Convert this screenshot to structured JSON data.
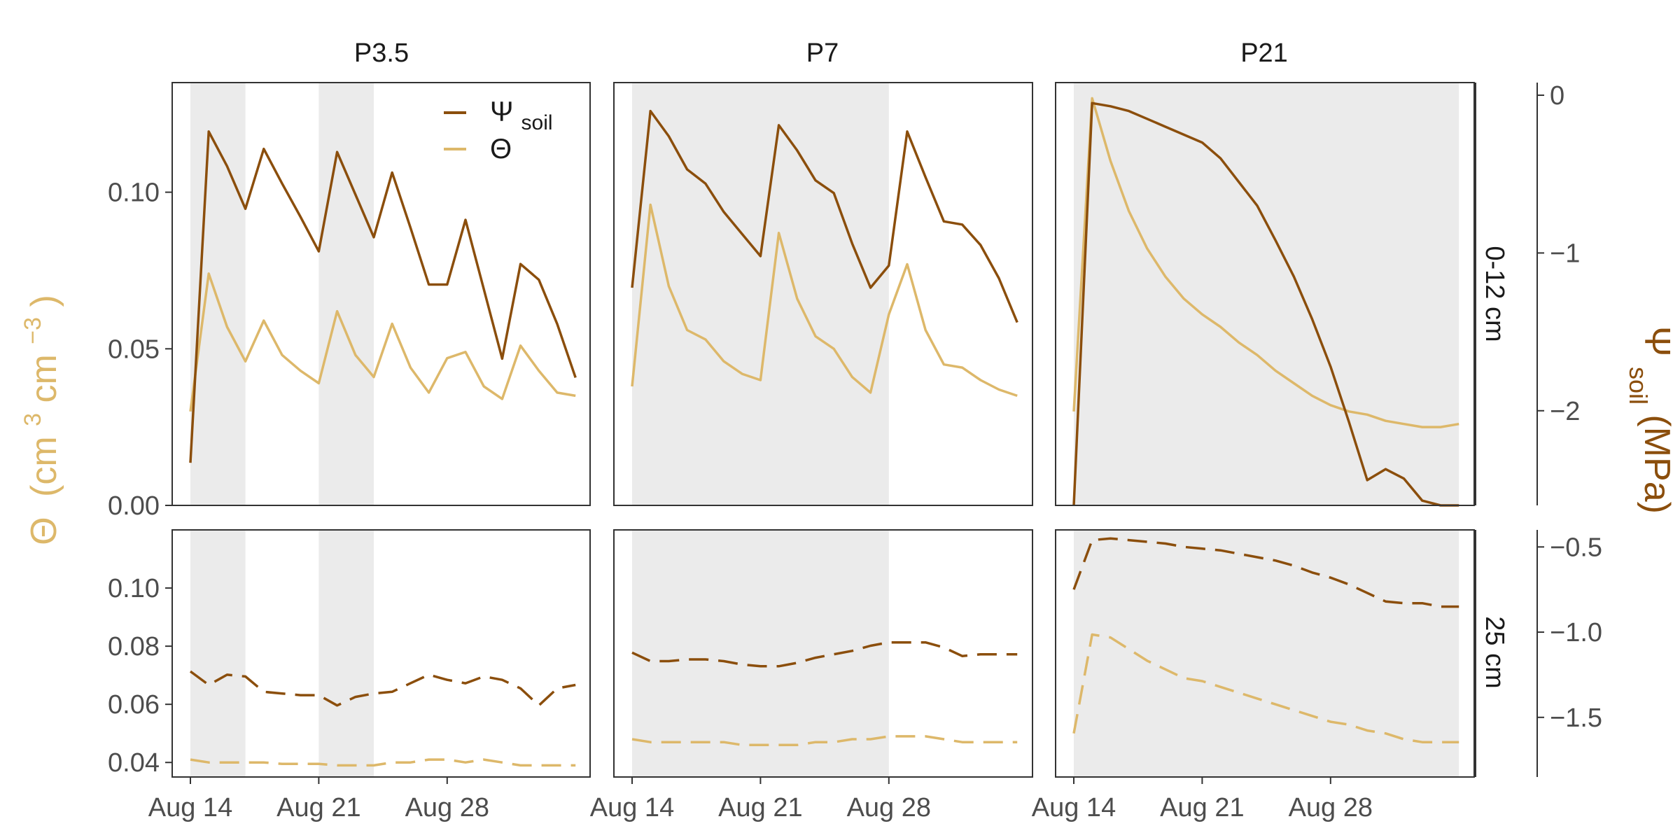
{
  "chart_data": {
    "type": "line",
    "facets": {
      "columns": [
        "P3.5",
        "P7",
        "P21"
      ],
      "rows": [
        "0-12 cm",
        "25 cm"
      ]
    },
    "x_axis": {
      "ticks": [
        "Aug 14",
        "Aug 21",
        "Aug 28"
      ],
      "range": [
        "Aug 14",
        "Sep 4"
      ]
    },
    "left_axis": {
      "title_symbol": "Θ",
      "title_units": "(cm",
      "title_sup1": "3",
      "title_mid": " cm",
      "title_sup2": " −3",
      "title_end": ")",
      "ylim_top": [
        0,
        0.135
      ],
      "ticks_top": [
        "0.00",
        "0.05",
        "0.10"
      ],
      "ylim_bottom": [
        0.035,
        0.12
      ],
      "ticks_bottom": [
        "0.04",
        "0.06",
        "0.08",
        "0.10"
      ]
    },
    "right_axis": {
      "title_symbol": "Ψ",
      "title_sub": "soil",
      "title_units": " (MPa)",
      "ylim_top": [
        -2.6,
        0.08
      ],
      "ticks_top": [
        "0",
        "−1",
        "−2"
      ],
      "ylim_bottom": [
        -1.85,
        -0.4
      ],
      "ticks_bottom": [
        "−0.5",
        "−1.0",
        "−1.5"
      ]
    },
    "legend": {
      "psi_symbol": "Ψ",
      "psi_sub": "soil",
      "theta_label": "Θ"
    },
    "colors": {
      "psi": "#8B4E0C",
      "theta": "#DDB86A",
      "shade": "#EBEBEB",
      "frame": "#333333"
    },
    "shaded_periods": {
      "P3.5": [
        [
          0,
          3
        ],
        [
          7,
          10
        ]
      ],
      "P7": [
        [
          0,
          14
        ]
      ],
      "P21": [
        [
          0,
          21
        ]
      ]
    },
    "series": {
      "P3.5": {
        "days": [
          0,
          1,
          2,
          3,
          4,
          5,
          6,
          7,
          8,
          9,
          10,
          11,
          12,
          13,
          14,
          15,
          16,
          17,
          18,
          19,
          20,
          21
        ],
        "theta_0_12": [
          0.03,
          0.074,
          0.057,
          0.046,
          0.059,
          0.048,
          0.043,
          0.039,
          0.062,
          0.048,
          0.041,
          0.058,
          0.044,
          0.036,
          0.047,
          0.049,
          0.038,
          0.034,
          0.051,
          0.043,
          0.036,
          0.035
        ],
        "psi_0_12": [
          -2.33,
          -0.23,
          -0.45,
          -0.72,
          -0.34,
          -0.56,
          -0.77,
          -0.99,
          -0.36,
          -0.63,
          -0.9,
          -0.49,
          -0.84,
          -1.2,
          -1.2,
          -0.79,
          -1.23,
          -1.67,
          -1.07,
          -1.17,
          -1.45,
          -1.79
        ],
        "theta_25": [
          0.041,
          0.04,
          0.04,
          0.04,
          0.04,
          0.0395,
          0.0395,
          0.0395,
          0.039,
          0.039,
          0.039,
          0.04,
          0.04,
          0.041,
          0.041,
          0.04,
          0.041,
          0.04,
          0.039,
          0.039,
          0.039,
          0.039
        ],
        "psi_25": [
          -1.23,
          -1.31,
          -1.25,
          -1.26,
          -1.35,
          -1.36,
          -1.37,
          -1.37,
          -1.43,
          -1.38,
          -1.36,
          -1.35,
          -1.3,
          -1.25,
          -1.28,
          -1.3,
          -1.26,
          -1.28,
          -1.33,
          -1.43,
          -1.33,
          -1.31
        ]
      },
      "P7": {
        "days": [
          0,
          1,
          2,
          3,
          4,
          5,
          6,
          7,
          8,
          9,
          10,
          11,
          12,
          13,
          14,
          15,
          16,
          17,
          18,
          19,
          20,
          21
        ],
        "theta_0_12": [
          0.038,
          0.096,
          0.07,
          0.056,
          0.053,
          0.046,
          0.042,
          0.04,
          0.087,
          0.066,
          0.054,
          0.05,
          0.041,
          0.036,
          0.061,
          0.077,
          0.056,
          0.045,
          0.044,
          0.04,
          0.037,
          0.035
        ],
        "psi_0_12": [
          -1.22,
          -0.1,
          -0.26,
          -0.47,
          -0.56,
          -0.74,
          -0.88,
          -1.02,
          -0.19,
          -0.35,
          -0.54,
          -0.62,
          -0.94,
          -1.22,
          -1.08,
          -0.23,
          -0.52,
          -0.8,
          -0.82,
          -0.95,
          -1.16,
          -1.44
        ],
        "theta_25": [
          0.048,
          0.047,
          0.047,
          0.047,
          0.047,
          0.047,
          0.046,
          0.046,
          0.046,
          0.046,
          0.047,
          0.047,
          0.048,
          0.048,
          0.049,
          0.049,
          0.049,
          0.048,
          0.047,
          0.047,
          0.047,
          0.047
        ],
        "psi_25": [
          -1.12,
          -1.17,
          -1.17,
          -1.16,
          -1.16,
          -1.17,
          -1.19,
          -1.2,
          -1.2,
          -1.18,
          -1.15,
          -1.13,
          -1.11,
          -1.08,
          -1.06,
          -1.06,
          -1.06,
          -1.09,
          -1.14,
          -1.13,
          -1.13,
          -1.13
        ]
      },
      "P21": {
        "days": [
          0,
          1,
          2,
          3,
          4,
          5,
          6,
          7,
          8,
          9,
          10,
          11,
          12,
          13,
          14,
          15,
          16,
          17,
          18,
          19,
          20,
          21
        ],
        "theta_0_12": [
          0.03,
          0.13,
          0.11,
          0.094,
          0.082,
          0.073,
          0.066,
          0.061,
          0.057,
          0.052,
          0.048,
          0.043,
          0.039,
          0.035,
          0.032,
          0.03,
          0.029,
          0.027,
          0.026,
          0.025,
          0.025,
          0.026
        ],
        "psi_0_12": [
          -2.6,
          -0.05,
          -0.07,
          -0.1,
          -0.15,
          -0.2,
          -0.25,
          -0.3,
          -0.4,
          -0.55,
          -0.7,
          -0.92,
          -1.15,
          -1.42,
          -1.72,
          -2.07,
          -2.44,
          -2.37,
          -2.43,
          -2.57,
          -2.6,
          -2.6
        ],
        "theta_25": [
          0.05,
          0.084,
          0.083,
          0.079,
          0.075,
          0.072,
          0.069,
          0.068,
          0.066,
          0.064,
          0.062,
          0.06,
          0.058,
          0.056,
          0.054,
          0.053,
          0.051,
          0.05,
          0.048,
          0.047,
          0.047,
          0.047
        ],
        "psi_25": [
          -0.75,
          -0.46,
          -0.45,
          -0.46,
          -0.47,
          -0.48,
          -0.5,
          -0.51,
          -0.52,
          -0.54,
          -0.56,
          -0.58,
          -0.61,
          -0.65,
          -0.68,
          -0.72,
          -0.77,
          -0.82,
          -0.83,
          -0.83,
          -0.85,
          -0.85
        ]
      }
    }
  }
}
